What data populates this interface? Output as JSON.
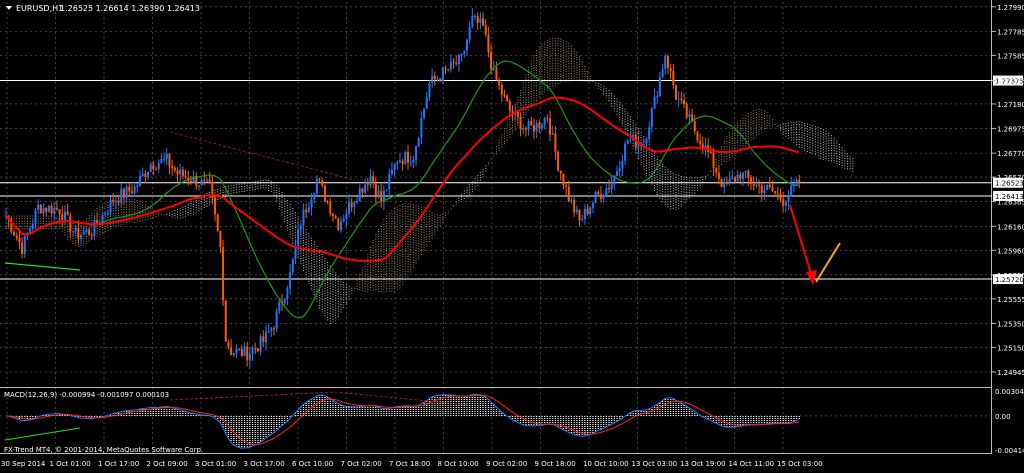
{
  "window": {
    "symbol_title": "EURUSD,H1",
    "ohlc": "1.26525 1.26614 1.26390 1.26413",
    "indicator_title": "MACD(12,26,9) -0.000994 -0.001097 0.000103",
    "watermark": "FX-Trend MT4, © 2001-2014, MetaQuotes Software Corp."
  },
  "colors": {
    "background": "#000000",
    "grid": "#6b6b6b",
    "bull": "#1e78ff",
    "bear": "#ff5a00",
    "cloud": "#d9b08c",
    "cloud_alt": "#ffffff",
    "ma_red": "#ff0000",
    "ma_green": "#1a9a1a",
    "arrow_down": "#ff0000",
    "arrow_up": "#ffa500"
  },
  "chart_data": [
    {
      "type": "candlestick",
      "symbol": "EURUSD",
      "timeframe": "H1",
      "ylim": [
        1.2482,
        1.2803
      ],
      "y_ticks": [
        1.2799,
        1.27785,
        1.27585,
        1.27375,
        1.2718,
        1.26975,
        1.2677,
        1.2657,
        1.26365,
        1.2616,
        1.2596,
        1.25755,
        1.25555,
        1.2535,
        1.2515,
        1.24945
      ],
      "x_ticks": [
        "30 Sep 2014",
        "1 Oct 01:00",
        "1 Oct 17:00",
        "2 Oct 09:00",
        "3 Oct 01:00",
        "3 Oct 17:00",
        "6 Oct 10:00",
        "7 Oct 02:00",
        "7 Oct 18:00",
        "8 Oct 10:00",
        "9 Oct 02:00",
        "9 Oct 18:00",
        "10 Oct 10:00",
        "13 Oct 03:00",
        "13 Oct 19:00",
        "14 Oct 11:00",
        "15 Oct 03:00"
      ],
      "horizontal_levels": [
        1.27375,
        1.26523,
        1.26413,
        1.2572
      ],
      "level_labels": [
        "1.27375",
        "1.26523",
        "1.26413",
        "1.25720"
      ],
      "path_anchors": [
        [
          0,
          1.2625
        ],
        [
          6,
          1.2598
        ],
        [
          12,
          1.2632
        ],
        [
          20,
          1.263
        ],
        [
          26,
          1.2609
        ],
        [
          32,
          1.2612
        ],
        [
          40,
          1.2638
        ],
        [
          48,
          1.2648
        ],
        [
          54,
          1.2668
        ],
        [
          60,
          1.2671
        ],
        [
          64,
          1.266
        ],
        [
          70,
          1.2655
        ],
        [
          76,
          1.2648
        ],
        [
          80,
          1.2598
        ],
        [
          82,
          1.2522
        ],
        [
          84,
          1.2512
        ],
        [
          90,
          1.251
        ],
        [
          96,
          1.252
        ],
        [
          100,
          1.2535
        ],
        [
          106,
          1.2575
        ],
        [
          110,
          1.262
        ],
        [
          116,
          1.2655
        ],
        [
          124,
          1.2618
        ],
        [
          130,
          1.264
        ],
        [
          136,
          1.2658
        ],
        [
          140,
          1.2637
        ],
        [
          146,
          1.2672
        ],
        [
          152,
          1.2675
        ],
        [
          158,
          1.2735
        ],
        [
          164,
          1.2745
        ],
        [
          170,
          1.2755
        ],
        [
          174,
          1.2788
        ],
        [
          178,
          1.2782
        ],
        [
          182,
          1.2742
        ],
        [
          188,
          1.2712
        ],
        [
          194,
          1.2697
        ],
        [
          198,
          1.27
        ],
        [
          202,
          1.2708
        ],
        [
          206,
          1.2668
        ],
        [
          210,
          1.264
        ],
        [
          214,
          1.262
        ],
        [
          220,
          1.264
        ],
        [
          226,
          1.2652
        ],
        [
          232,
          1.2688
        ],
        [
          238,
          1.2686
        ],
        [
          242,
          1.272
        ],
        [
          246,
          1.276
        ],
        [
          250,
          1.2725
        ],
        [
          256,
          1.27
        ],
        [
          262,
          1.2677
        ],
        [
          268,
          1.2648
        ],
        [
          274,
          1.266
        ],
        [
          280,
          1.265
        ],
        [
          286,
          1.2645
        ],
        [
          290,
          1.2638
        ],
        [
          296,
          1.2652
        ]
      ],
      "up_to_index": 296
    },
    {
      "type": "line",
      "indicator": "MACD(12,26,9)",
      "values_shown": [
        -0.000994,
        -0.001097,
        0.000103
      ],
      "ylim": [
        -0.0045,
        0.0034
      ],
      "y_ticks": [
        0.003042,
        0.0,
        -0.004141
      ],
      "y_tick_labels": [
        "0.003042",
        "0.00",
        "-0.004141"
      ]
    }
  ]
}
